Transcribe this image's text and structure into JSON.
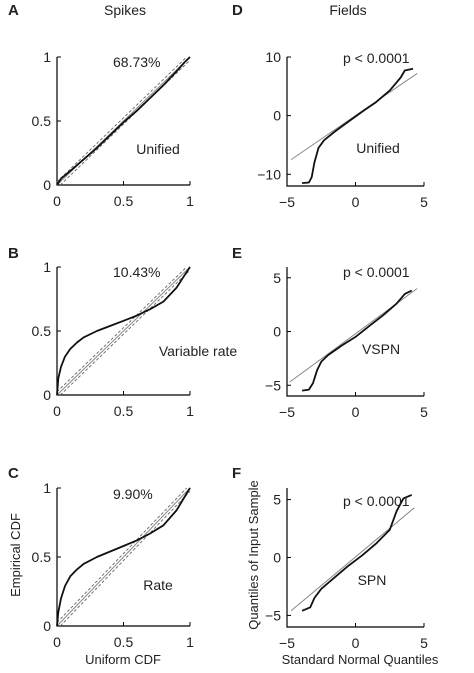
{
  "figure": {
    "column_titles": [
      "Spikes",
      "Fields"
    ],
    "panel_letters": [
      "A",
      "B",
      "C",
      "D",
      "E",
      "F"
    ],
    "left_xlabel": "Uniform CDF",
    "left_ylabel": "Empirical CDF",
    "right_xlabel": "Standard Normal Quantiles",
    "right_ylabel": "Quantiles of Input Sample"
  },
  "chart_data": [
    {
      "panel": "A",
      "type": "line",
      "kind": "cdf",
      "annotation": "68.73%",
      "label": "Unified",
      "xlim": [
        0,
        1
      ],
      "ylim": [
        0,
        1
      ],
      "xticks": [
        0,
        0.5,
        1
      ],
      "yticks": [
        0,
        0.5,
        1
      ],
      "xtick_labels": [
        "0",
        "0.5",
        "1"
      ],
      "ytick_labels": [
        "0",
        "0.5",
        "1"
      ],
      "band_halfwidth": 0.025,
      "series": [
        {
          "x": [
            0,
            0.03,
            0.1,
            0.2,
            0.3,
            0.4,
            0.5,
            0.6,
            0.7,
            0.8,
            0.9,
            0.96,
            1
          ],
          "y": [
            0,
            0.05,
            0.11,
            0.2,
            0.29,
            0.39,
            0.49,
            0.58,
            0.68,
            0.78,
            0.89,
            0.96,
            1
          ]
        }
      ]
    },
    {
      "panel": "B",
      "type": "line",
      "kind": "cdf",
      "annotation": "10.43%",
      "label": "Variable rate",
      "xlim": [
        0,
        1
      ],
      "ylim": [
        0,
        1
      ],
      "xticks": [
        0,
        0.5,
        1
      ],
      "yticks": [
        0,
        0.5,
        1
      ],
      "xtick_labels": [
        "0",
        "0.5",
        "1"
      ],
      "ytick_labels": [
        "0",
        "0.5",
        "1"
      ],
      "band_halfwidth": 0.025,
      "series": [
        {
          "x": [
            0,
            0.01,
            0.03,
            0.06,
            0.1,
            0.15,
            0.2,
            0.3,
            0.4,
            0.5,
            0.6,
            0.7,
            0.8,
            0.9,
            0.95,
            1
          ],
          "y": [
            0,
            0.13,
            0.22,
            0.3,
            0.36,
            0.41,
            0.45,
            0.5,
            0.54,
            0.58,
            0.62,
            0.67,
            0.73,
            0.84,
            0.92,
            1
          ]
        }
      ]
    },
    {
      "panel": "C",
      "type": "line",
      "kind": "cdf",
      "annotation": "9.90%",
      "label": "Rate",
      "xlim": [
        0,
        1
      ],
      "ylim": [
        0,
        1
      ],
      "xticks": [
        0,
        0.5,
        1
      ],
      "yticks": [
        0,
        0.5,
        1
      ],
      "xtick_labels": [
        "0",
        "0.5",
        "1"
      ],
      "ytick_labels": [
        "0",
        "0.5",
        "1"
      ],
      "band_halfwidth": 0.025,
      "series": [
        {
          "x": [
            0,
            0.01,
            0.03,
            0.06,
            0.1,
            0.15,
            0.2,
            0.3,
            0.4,
            0.5,
            0.6,
            0.7,
            0.8,
            0.9,
            0.95,
            1
          ],
          "y": [
            0,
            0.1,
            0.2,
            0.29,
            0.36,
            0.41,
            0.45,
            0.5,
            0.54,
            0.58,
            0.62,
            0.67,
            0.73,
            0.84,
            0.92,
            1
          ]
        }
      ]
    },
    {
      "panel": "D",
      "type": "line",
      "kind": "qq",
      "annotation": "p < 0.0001",
      "label": "Unified",
      "xlim": [
        -5,
        5
      ],
      "ylim": [
        -12,
        10
      ],
      "xticks": [
        -5,
        0,
        5
      ],
      "yticks": [
        -10,
        0,
        10
      ],
      "xtick_labels": [
        "−5",
        "0",
        "5"
      ],
      "ytick_labels": [
        "−10",
        "0",
        "10"
      ],
      "reference_line": {
        "x": [
          -4.7,
          4.5
        ],
        "y": [
          -7.5,
          7.2
        ]
      },
      "series": [
        {
          "x": [
            -3.9,
            -3.4,
            -3.2,
            -3.0,
            -2.7,
            -2.3,
            -1.5,
            -0.5,
            0.5,
            1.5,
            2.5,
            3.3,
            3.6,
            4.2
          ],
          "y": [
            -11.5,
            -11.4,
            -10.5,
            -8.0,
            -5.5,
            -4.2,
            -2.7,
            -1.0,
            0.7,
            2.3,
            4.3,
            6.5,
            7.7,
            8.0
          ]
        }
      ]
    },
    {
      "panel": "E",
      "type": "line",
      "kind": "qq",
      "annotation": "p < 0.0001",
      "label": "VSPN",
      "xlim": [
        -5,
        5
      ],
      "ylim": [
        -6,
        6
      ],
      "xticks": [
        -5,
        0,
        5
      ],
      "yticks": [
        -5,
        0,
        5
      ],
      "xtick_labels": [
        "−5",
        "0",
        "5"
      ],
      "ytick_labels": [
        "−5",
        "0",
        "5"
      ],
      "reference_line": {
        "x": [
          -4.8,
          4.5
        ],
        "y": [
          -4.7,
          4.0
        ]
      },
      "series": [
        {
          "x": [
            -3.9,
            -3.4,
            -3.1,
            -2.8,
            -2.5,
            -2.0,
            -1.0,
            0.0,
            1.0,
            2.0,
            3.0,
            3.6,
            4.1
          ],
          "y": [
            -5.5,
            -5.4,
            -4.8,
            -3.6,
            -2.8,
            -2.2,
            -1.3,
            -0.5,
            0.5,
            1.5,
            2.6,
            3.5,
            3.8
          ]
        }
      ]
    },
    {
      "panel": "F",
      "type": "line",
      "kind": "qq",
      "annotation": "p < 0.0001",
      "label": "SPN",
      "xlim": [
        -5,
        5
      ],
      "ylim": [
        -6,
        6
      ],
      "xticks": [
        -5,
        0,
        5
      ],
      "yticks": [
        -5,
        0,
        5
      ],
      "xtick_labels": [
        "−5",
        "0",
        "5"
      ],
      "ytick_labels": [
        "−5",
        "0",
        "5"
      ],
      "reference_line": {
        "x": [
          -4.7,
          4.3
        ],
        "y": [
          -4.6,
          4.3
        ]
      },
      "series": [
        {
          "x": [
            -3.9,
            -3.3,
            -3.0,
            -2.5,
            -1.5,
            -0.5,
            0.5,
            1.5,
            2.5,
            3.0,
            3.5,
            4.1
          ],
          "y": [
            -4.6,
            -4.3,
            -3.5,
            -2.7,
            -1.7,
            -0.7,
            0.2,
            1.2,
            2.4,
            4.0,
            5.1,
            5.4
          ]
        }
      ]
    }
  ]
}
